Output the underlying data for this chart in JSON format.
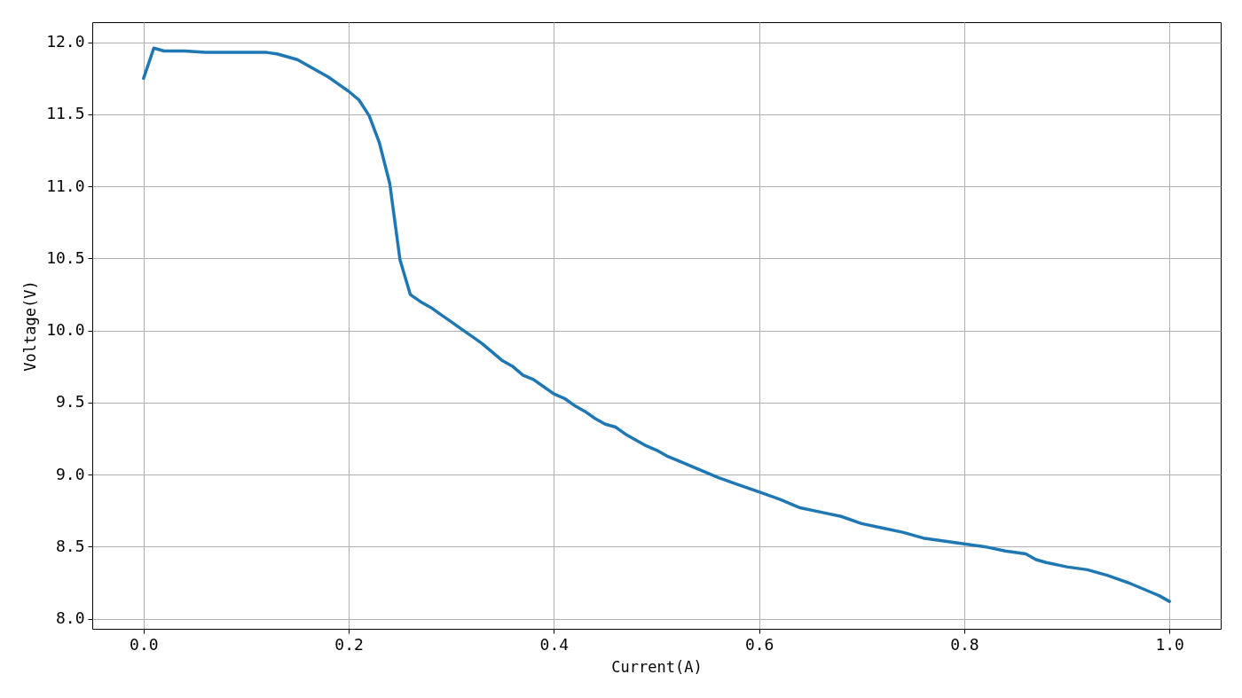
{
  "chart_data": {
    "type": "line",
    "xlabel": "Current(A)",
    "ylabel": "Voltage(V)",
    "x": [
      0,
      0.01,
      0.02,
      0.04,
      0.06,
      0.08,
      0.1,
      0.12,
      0.13,
      0.14,
      0.15,
      0.16,
      0.17,
      0.18,
      0.19,
      0.2,
      0.21,
      0.22,
      0.23,
      0.24,
      0.25,
      0.26,
      0.27,
      0.28,
      0.29,
      0.3,
      0.31,
      0.32,
      0.33,
      0.34,
      0.35,
      0.36,
      0.37,
      0.38,
      0.39,
      0.4,
      0.41,
      0.42,
      0.43,
      0.44,
      0.45,
      0.46,
      0.47,
      0.48,
      0.49,
      0.5,
      0.51,
      0.52,
      0.54,
      0.56,
      0.58,
      0.6,
      0.62,
      0.64,
      0.66,
      0.68,
      0.7,
      0.72,
      0.74,
      0.76,
      0.78,
      0.8,
      0.82,
      0.84,
      0.86,
      0.87,
      0.88,
      0.9,
      0.92,
      0.94,
      0.96,
      0.98,
      0.99,
      1.0
    ],
    "series": [
      {
        "color": "#1f77b4",
        "values": [
          11.75,
          11.96,
          11.94,
          11.94,
          11.93,
          11.93,
          11.93,
          11.93,
          11.92,
          11.9,
          11.88,
          11.84,
          11.8,
          11.76,
          11.71,
          11.66,
          11.6,
          11.49,
          11.3,
          11.02,
          10.49,
          10.25,
          10.2,
          10.16,
          10.11,
          10.06,
          10.01,
          9.96,
          9.91,
          9.85,
          9.79,
          9.75,
          9.69,
          9.66,
          9.61,
          9.56,
          9.53,
          9.48,
          9.44,
          9.39,
          9.35,
          9.33,
          9.28,
          9.24,
          9.2,
          9.17,
          9.13,
          9.1,
          9.04,
          8.98,
          8.93,
          8.88,
          8.83,
          8.77,
          8.74,
          8.71,
          8.66,
          8.63,
          8.6,
          8.56,
          8.54,
          8.52,
          8.5,
          8.47,
          8.45,
          8.41,
          8.39,
          8.36,
          8.34,
          8.3,
          8.25,
          8.19,
          8.16,
          8.12
        ]
      }
    ],
    "xlim": [
      -0.05,
      1.05
    ],
    "ylim": [
      7.93,
      12.14
    ],
    "xticks": [
      {
        "value": 0,
        "label": "0.0"
      },
      {
        "value": 0.2,
        "label": "0.2"
      },
      {
        "value": 0.4,
        "label": "0.4"
      },
      {
        "value": 0.6,
        "label": "0.6"
      },
      {
        "value": 0.8,
        "label": "0.8"
      },
      {
        "value": 1,
        "label": "1.0"
      }
    ],
    "yticks": [
      {
        "value": 8,
        "label": "8.0"
      },
      {
        "value": 8.5,
        "label": "8.5"
      },
      {
        "value": 9,
        "label": "9.0"
      },
      {
        "value": 9.5,
        "label": "9.5"
      },
      {
        "value": 10,
        "label": "10.0"
      },
      {
        "value": 10.5,
        "label": "10.5"
      },
      {
        "value": 11,
        "label": "11.0"
      },
      {
        "value": 11.5,
        "label": "11.5"
      },
      {
        "value": 12,
        "label": "12.0"
      }
    ],
    "grid": true,
    "marker": "none",
    "line_style": "solid"
  }
}
